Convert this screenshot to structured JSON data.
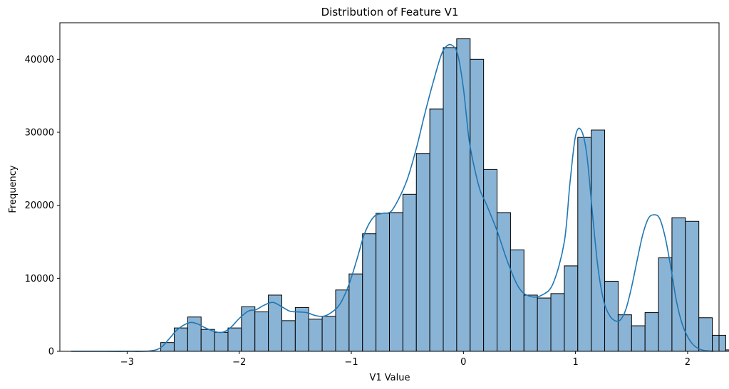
{
  "chart_data": {
    "type": "bar",
    "title": "Distribution of Feature V1",
    "xlabel": "V1 Value",
    "ylabel": "Frequency",
    "xlim": [
      -3.6,
      2.28
    ],
    "ylim": [
      0,
      45000
    ],
    "x_ticks": [
      -3,
      -2,
      -1,
      0,
      1,
      2
    ],
    "x_tick_labels": [
      "−3",
      "−2",
      "−1",
      "0",
      "1",
      "2"
    ],
    "y_ticks": [
      0,
      10000,
      20000,
      30000,
      40000
    ],
    "y_tick_labels": [
      "0",
      "10000",
      "20000",
      "30000",
      "40000"
    ],
    "grid": false,
    "bar_color": "#8ab4d6",
    "bar_edge_color": "#000000",
    "kde_color": "#1f77b4",
    "bins": [
      {
        "x0": -2.7,
        "x1": -2.58,
        "value": 1200
      },
      {
        "x0": -2.58,
        "x1": -2.46,
        "value": 3200
      },
      {
        "x0": -2.46,
        "x1": -2.34,
        "value": 4700
      },
      {
        "x0": -2.34,
        "x1": -2.22,
        "value": 3000
      },
      {
        "x0": -2.22,
        "x1": -2.1,
        "value": 2600
      },
      {
        "x0": -2.1,
        "x1": -1.98,
        "value": 3200
      },
      {
        "x0": -1.98,
        "x1": -1.86,
        "value": 6100
      },
      {
        "x0": -1.86,
        "x1": -1.74,
        "value": 5400
      },
      {
        "x0": -1.74,
        "x1": -1.62,
        "value": 7700
      },
      {
        "x0": -1.62,
        "x1": -1.5,
        "value": 4200
      },
      {
        "x0": -1.5,
        "x1": -1.38,
        "value": 6000
      },
      {
        "x0": -1.38,
        "x1": -1.26,
        "value": 4400
      },
      {
        "x0": -1.26,
        "x1": -1.14,
        "value": 4800
      },
      {
        "x0": -1.14,
        "x1": -1.02,
        "value": 8400
      },
      {
        "x0": -1.02,
        "x1": -0.9,
        "value": 10600
      },
      {
        "x0": -0.9,
        "x1": -0.78,
        "value": 16100
      },
      {
        "x0": -0.78,
        "x1": -0.66,
        "value": 18900
      },
      {
        "x0": -0.66,
        "x1": -0.54,
        "value": 19000
      },
      {
        "x0": -0.54,
        "x1": -0.42,
        "value": 21500
      },
      {
        "x0": -0.42,
        "x1": -0.3,
        "value": 27100
      },
      {
        "x0": -0.3,
        "x1": -0.18,
        "value": 33200
      },
      {
        "x0": -0.18,
        "x1": -0.06,
        "value": 41600
      },
      {
        "x0": -0.06,
        "x1": 0.06,
        "value": 42800
      },
      {
        "x0": 0.06,
        "x1": 0.18,
        "value": 40000
      },
      {
        "x0": 0.18,
        "x1": 0.3,
        "value": 24900
      },
      {
        "x0": 0.3,
        "x1": 0.42,
        "value": 19000
      },
      {
        "x0": 0.42,
        "x1": 0.54,
        "value": 13900
      },
      {
        "x0": 0.54,
        "x1": 0.66,
        "value": 7700
      },
      {
        "x0": 0.66,
        "x1": 0.78,
        "value": 7300
      },
      {
        "x0": 0.78,
        "x1": 0.9,
        "value": 7900
      },
      {
        "x0": 0.9,
        "x1": 1.02,
        "value": 11700
      },
      {
        "x0": 1.02,
        "x1": 1.14,
        "value": 29300
      },
      {
        "x0": 1.14,
        "x1": 1.26,
        "value": 30300
      },
      {
        "x0": 1.26,
        "x1": 1.38,
        "value": 9600
      },
      {
        "x0": 1.38,
        "x1": 1.5,
        "value": 5000
      },
      {
        "x0": 1.5,
        "x1": 1.62,
        "value": 3500
      },
      {
        "x0": 1.62,
        "x1": 1.74,
        "value": 5300
      },
      {
        "x0": 1.74,
        "x1": 1.86,
        "value": 12800
      },
      {
        "x0": 1.86,
        "x1": 1.98,
        "value": 18300
      },
      {
        "x0": 1.98,
        "x1": 2.1,
        "value": 17800
      },
      {
        "x0": 2.1,
        "x1": 2.22,
        "value": 4600
      },
      {
        "x0": 2.22,
        "x1": 2.34,
        "value": 2200
      },
      {
        "x0": 2.34,
        "x1": 2.46,
        "value": 200
      }
    ],
    "kde": {
      "x": [
        -3.5,
        -3.2,
        -3.0,
        -2.8,
        -2.7,
        -2.62,
        -2.55,
        -2.45,
        -2.38,
        -2.3,
        -2.22,
        -2.15,
        -2.08,
        -2.0,
        -1.92,
        -1.85,
        -1.78,
        -1.7,
        -1.62,
        -1.55,
        -1.48,
        -1.4,
        -1.32,
        -1.25,
        -1.18,
        -1.1,
        -1.02,
        -0.95,
        -0.88,
        -0.8,
        -0.72,
        -0.65,
        -0.58,
        -0.5,
        -0.42,
        -0.35,
        -0.28,
        -0.2,
        -0.15,
        -0.1,
        -0.05,
        0.0,
        0.05,
        0.1,
        0.15,
        0.2,
        0.3,
        0.4,
        0.5,
        0.6,
        0.7,
        0.8,
        0.9,
        0.95,
        1.0,
        1.05,
        1.1,
        1.15,
        1.2,
        1.25,
        1.3,
        1.35,
        1.4,
        1.45,
        1.5,
        1.55,
        1.6,
        1.65,
        1.7,
        1.75,
        1.8,
        1.85,
        1.9,
        1.95,
        2.0,
        2.05,
        2.1,
        2.15,
        2.23
      ],
      "y": [
        0,
        0,
        0,
        50,
        500,
        1800,
        3000,
        3900,
        3800,
        3200,
        2700,
        2600,
        3200,
        4500,
        5500,
        5700,
        6300,
        6700,
        6100,
        5500,
        5400,
        5300,
        4900,
        4800,
        5300,
        6500,
        9200,
        12600,
        16200,
        18400,
        18900,
        19100,
        20800,
        23600,
        27800,
        32200,
        36300,
        40500,
        41800,
        41900,
        40600,
        36000,
        29000,
        25000,
        22000,
        20300,
        16500,
        12000,
        8600,
        7500,
        7700,
        9300,
        15000,
        23000,
        29500,
        30300,
        27000,
        19000,
        11500,
        7000,
        5000,
        4200,
        4300,
        5800,
        8800,
        12500,
        16000,
        18200,
        18700,
        18200,
        15600,
        11500,
        6900,
        3800,
        2000,
        900,
        350,
        100,
        0
      ]
    }
  }
}
